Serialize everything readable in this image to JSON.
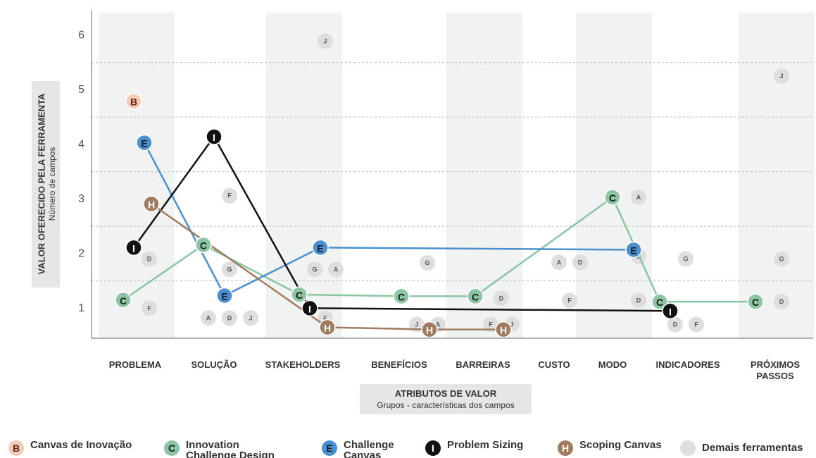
{
  "chart_data": {
    "type": "line",
    "y_axis_title": "VALOR OFERECIDO PELA FERRAMENTA",
    "y_axis_subtitle": "Número de campos",
    "x_axis_title": "ATRIBUTOS DE VALOR",
    "x_axis_subtitle": "Grupos - características dos campos",
    "categories": [
      "PROBLEMA",
      "SOLUÇÃO",
      "STAKEHOLDERS",
      "BENEFÍCIOS",
      "BARREIRAS",
      "CUSTO",
      "MODO",
      "INDICADORES",
      "PRÓXIMOS PASSOS"
    ],
    "ylim": [
      0.45,
      6.45
    ],
    "yticks": [
      1,
      2,
      3,
      4,
      5,
      6
    ],
    "ygrid": [
      1.5,
      2.5,
      3.5,
      4.5,
      5.5
    ],
    "series": [
      {
        "name": "Canvas de Inovação",
        "letter": "B",
        "color": "#f5cbb5",
        "text_color": "#5a2a1a",
        "line": false,
        "values": [
          4.79,
          null,
          null,
          null,
          null,
          null,
          null,
          null,
          null
        ]
      },
      {
        "name": "Innovation Challenge Design Canvas",
        "letter": "C",
        "color": "#8cc5a3",
        "text_color": "#1a1a1a",
        "line": true,
        "values": [
          1.15,
          2.16,
          1.25,
          1.22,
          1.22,
          null,
          3.03,
          1.12,
          1.12
        ]
      },
      {
        "name": "Challenge Canvas",
        "letter": "E",
        "color": "#4a90d0",
        "text_color": "#1a1a1a",
        "line": true,
        "values": [
          4.03,
          1.23,
          2.11,
          null,
          null,
          null,
          2.07,
          null,
          null
        ]
      },
      {
        "name": "Problem Sizing",
        "letter": "I",
        "color": "#111111",
        "text_color": "#ffffff",
        "line": true,
        "values": [
          2.11,
          4.14,
          1.0,
          null,
          null,
          null,
          null,
          0.95,
          null
        ]
      },
      {
        "name": "Scoping Canvas",
        "letter": "H",
        "color": "#a07b60",
        "text_color": "#ffffff",
        "line": true,
        "values": [
          2.91,
          null,
          0.65,
          0.61,
          0.61,
          null,
          null,
          null,
          null
        ]
      }
    ],
    "others": {
      "name": "Demais ferramentas",
      "color": "#dedede",
      "points": [
        {
          "label": "D",
          "category": "PROBLEMA",
          "value": 1.9
        },
        {
          "label": "F",
          "category": "PROBLEMA",
          "value": 1.0
        },
        {
          "label": "F",
          "category": "SOLUÇÃO",
          "value": 3.06
        },
        {
          "label": "G",
          "category": "SOLUÇÃO",
          "value": 1.71
        },
        {
          "label": "A",
          "category": "SOLUÇÃO",
          "value": 0.82
        },
        {
          "label": "D",
          "category": "SOLUÇÃO",
          "value": 0.82
        },
        {
          "label": "J",
          "category": "SOLUÇÃO",
          "value": 0.82
        },
        {
          "label": "J",
          "category": "STAKEHOLDERS",
          "value": 5.89
        },
        {
          "label": "G",
          "category": "STAKEHOLDERS",
          "value": 1.71
        },
        {
          "label": "A",
          "category": "STAKEHOLDERS",
          "value": 1.71
        },
        {
          "label": "F",
          "category": "STAKEHOLDERS",
          "value": 0.82
        },
        {
          "label": "G",
          "category": "BENEFÍCIOS",
          "value": 1.83
        },
        {
          "label": "J",
          "category": "BENEFÍCIOS",
          "value": 0.7
        },
        {
          "label": "A",
          "category": "BENEFÍCIOS",
          "value": 0.7
        },
        {
          "label": "D",
          "category": "BARREIRAS",
          "value": 1.18
        },
        {
          "label": "F",
          "category": "BARREIRAS",
          "value": 0.7
        },
        {
          "label": "J",
          "category": "BARREIRAS",
          "value": 0.7
        },
        {
          "label": "A",
          "category": "CUSTO",
          "value": 1.84
        },
        {
          "label": "D",
          "category": "CUSTO",
          "value": 1.84
        },
        {
          "label": "F",
          "category": "CUSTO",
          "value": 1.14
        },
        {
          "label": "A",
          "category": "MODO",
          "value": 3.03
        },
        {
          "label": "G",
          "category": "MODO",
          "value": 1.95
        },
        {
          "label": "D",
          "category": "MODO",
          "value": 1.14
        },
        {
          "label": "G",
          "category": "INDICADORES",
          "value": 1.9
        },
        {
          "label": "D",
          "category": "INDICADORES",
          "value": 0.7
        },
        {
          "label": "F",
          "category": "INDICADORES",
          "value": 0.7
        },
        {
          "label": "J",
          "category": "PRÓXIMOS PASSOS",
          "value": 5.25
        },
        {
          "label": "G",
          "category": "PRÓXIMOS PASSOS",
          "value": 1.9
        },
        {
          "label": "D",
          "category": "PRÓXIMOS PASSOS",
          "value": 1.12
        }
      ]
    }
  }
}
